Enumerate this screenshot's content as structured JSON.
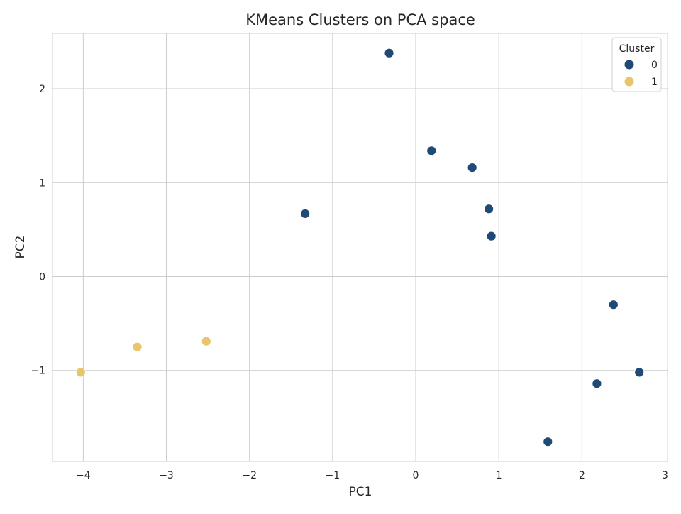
{
  "chart_data": {
    "type": "scatter",
    "title": "KMeans Clusters on PCA space",
    "xlabel": "PC1",
    "ylabel": "PC2",
    "xlim": [
      -4.37,
      3.03
    ],
    "ylim": [
      -1.97,
      2.59
    ],
    "xticks": [
      -4,
      -3,
      -2,
      -1,
      0,
      1,
      2,
      3
    ],
    "yticks": [
      -1,
      0,
      1,
      2
    ],
    "xtick_labels": [
      "−4",
      "−3",
      "−2",
      "−1",
      "0",
      "1",
      "2",
      "3"
    ],
    "ytick_labels": [
      "−1",
      "0",
      "1",
      "2"
    ],
    "grid": true,
    "legend": {
      "title": "Cluster",
      "placement": "top-right"
    },
    "series": [
      {
        "name": "0",
        "color": "#1f4a75",
        "points": [
          {
            "x": -0.32,
            "y": 2.38
          },
          {
            "x": 0.19,
            "y": 1.34
          },
          {
            "x": 0.68,
            "y": 1.16
          },
          {
            "x": 0.88,
            "y": 0.72
          },
          {
            "x": 0.91,
            "y": 0.43
          },
          {
            "x": -1.33,
            "y": 0.67
          },
          {
            "x": 2.38,
            "y": -0.3
          },
          {
            "x": 2.69,
            "y": -1.02
          },
          {
            "x": 2.18,
            "y": -1.14
          },
          {
            "x": 1.59,
            "y": -1.76
          }
        ]
      },
      {
        "name": "1",
        "color": "#e8c46a",
        "points": [
          {
            "x": -4.03,
            "y": -1.02
          },
          {
            "x": -3.35,
            "y": -0.75
          },
          {
            "x": -2.52,
            "y": -0.69
          }
        ]
      }
    ]
  }
}
